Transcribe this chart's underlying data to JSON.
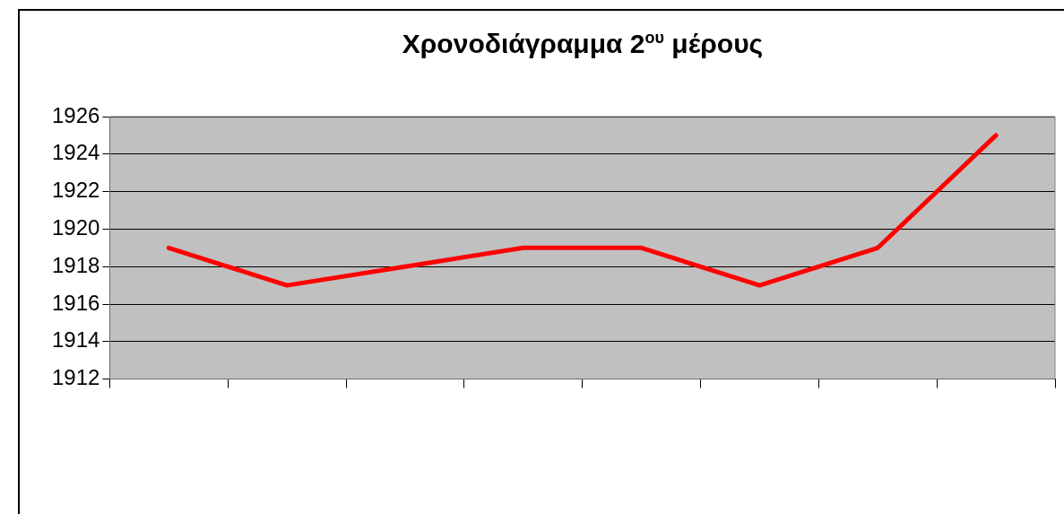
{
  "chart_data": {
    "type": "line",
    "title": "Χρονοδιάγραμμα 2$^{ου}$ μέρους",
    "categories": [
      null,
      null,
      null,
      null,
      null,
      null,
      null,
      null
    ],
    "series": [
      {
        "color": "#ff0000",
        "values": [
          1919,
          1917,
          1918,
          1919,
          1919,
          1917,
          1919,
          1925
        ]
      }
    ],
    "ylim": [
      1912,
      1926
    ],
    "yticks": [
      1912,
      1914,
      1916,
      1918,
      1920,
      1922,
      1924,
      1926
    ],
    "grid": "y",
    "legend": false,
    "marker": "none",
    "line_style": "solid"
  }
}
